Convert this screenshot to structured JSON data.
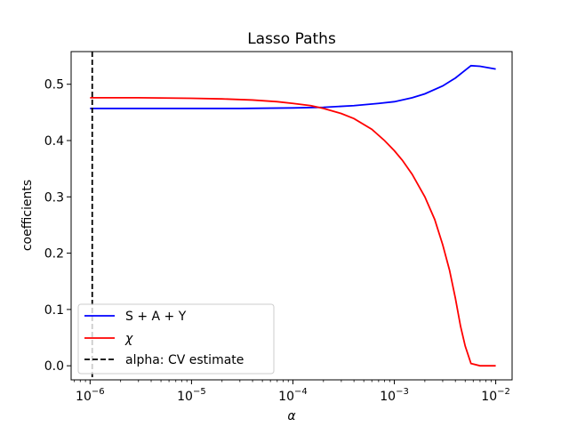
{
  "chart_data": {
    "type": "line",
    "title": "Lasso Paths",
    "xlabel": "α",
    "ylabel": "coefficients",
    "xscale": "log",
    "xlim": [
      6.5e-07,
      0.0145
    ],
    "ylim": [
      -0.025,
      0.558
    ],
    "xticks": [
      {
        "value": 1e-06,
        "base": "10",
        "exp": "−6"
      },
      {
        "value": 1e-05,
        "base": "10",
        "exp": "−5"
      },
      {
        "value": 0.0001,
        "base": "10",
        "exp": "−4"
      },
      {
        "value": 0.001,
        "base": "10",
        "exp": "−3"
      },
      {
        "value": 0.01,
        "base": "10",
        "exp": "−2"
      }
    ],
    "yticks": [
      {
        "value": 0.0,
        "label": "0.0"
      },
      {
        "value": 0.1,
        "label": "0.1"
      },
      {
        "value": 0.2,
        "label": "0.2"
      },
      {
        "value": 0.3,
        "label": "0.3"
      },
      {
        "value": 0.4,
        "label": "0.4"
      },
      {
        "value": 0.5,
        "label": "0.5"
      }
    ],
    "grid": false,
    "legend_position": "lower-left",
    "series": [
      {
        "name": "S + A + Y",
        "color": "#0000ff",
        "x": [
          1e-06,
          1e-05,
          3e-05,
          0.0001,
          0.0002,
          0.0004,
          0.0007,
          0.001,
          0.0015,
          0.002,
          0.003,
          0.004,
          0.005,
          0.0057,
          0.007,
          0.01
        ],
        "y": [
          0.457,
          0.457,
          0.457,
          0.458,
          0.459,
          0.462,
          0.466,
          0.469,
          0.476,
          0.483,
          0.497,
          0.511,
          0.525,
          0.533,
          0.532,
          0.527
        ]
      },
      {
        "name": "χ",
        "color": "#ff0000",
        "x": [
          1e-06,
          3e-06,
          1e-05,
          2e-05,
          4e-05,
          7e-05,
          0.0001,
          0.00015,
          0.0002,
          0.0003,
          0.0004,
          0.0006,
          0.0008,
          0.001,
          0.0012,
          0.0015,
          0.002,
          0.0025,
          0.003,
          0.0035,
          0.004,
          0.0045,
          0.005,
          0.0057,
          0.007,
          0.01
        ],
        "y": [
          0.476,
          0.476,
          0.475,
          0.474,
          0.472,
          0.469,
          0.466,
          0.462,
          0.457,
          0.448,
          0.439,
          0.42,
          0.4,
          0.382,
          0.365,
          0.34,
          0.3,
          0.26,
          0.215,
          0.17,
          0.12,
          0.07,
          0.035,
          0.004,
          0.0,
          0.0
        ]
      },
      {
        "name": "alpha: CV estimate",
        "color": "#000000",
        "style": "dashed",
        "vline": 1.05e-06
      }
    ]
  }
}
